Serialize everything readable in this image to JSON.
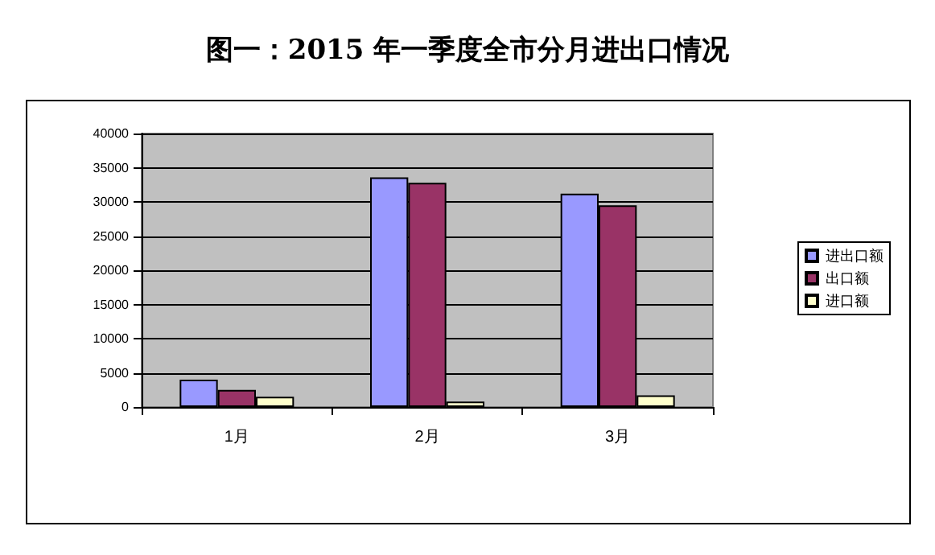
{
  "chart_data": {
    "type": "bar",
    "title": "图一：2015 年一季度全市分月进出口情况",
    "categories": [
      "1月",
      "2月",
      "3月"
    ],
    "series": [
      {
        "name": "进出口额",
        "color": "#9999ff",
        "values": [
          4000,
          33600,
          31200
        ]
      },
      {
        "name": "出口额",
        "color": "#993366",
        "values": [
          2500,
          32800,
          29500
        ]
      },
      {
        "name": "进口额",
        "color": "#ffffcc",
        "values": [
          1500,
          800,
          1700
        ]
      }
    ],
    "ylim": [
      0,
      40000
    ],
    "yticks": [
      0,
      5000,
      10000,
      15000,
      20000,
      25000,
      30000,
      35000,
      40000
    ],
    "grid": "y",
    "legend": "right"
  }
}
